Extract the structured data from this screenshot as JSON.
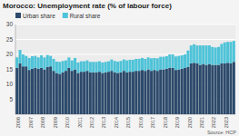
{
  "chart_data": {
    "type": "bar",
    "stacked": true,
    "title": "Morocco: Unemployment rate (% of labour force)",
    "source": "Source: HCP",
    "legend": "upper left",
    "grid": true,
    "ylim": [
      0,
      30
    ],
    "yticks": [
      5,
      10,
      15,
      20,
      25,
      30
    ],
    "categories": [
      "2006",
      null,
      null,
      null,
      "2007",
      null,
      null,
      null,
      "2008",
      null,
      null,
      null,
      "2009",
      null,
      null,
      null,
      "2010",
      null,
      null,
      null,
      "2011",
      null,
      null,
      null,
      "2012",
      null,
      null,
      null,
      "2013",
      null,
      null,
      null,
      "2014",
      null,
      null,
      null,
      "2015",
      null,
      null,
      null,
      "2016",
      null,
      null,
      null,
      "2017",
      null,
      null,
      null,
      "2018",
      null,
      null,
      null,
      "2019",
      null,
      null,
      null,
      "2020",
      null,
      null,
      null,
      "2021",
      null,
      null,
      null,
      "2022",
      null,
      null,
      null,
      "2023",
      null,
      null,
      null
    ],
    "series": [
      {
        "name": "Urban share",
        "color": "#2d4a6b",
        "values": [
          15.5,
          17.0,
          16.0,
          16.0,
          14.8,
          15.2,
          15.5,
          15.2,
          15.5,
          15.0,
          15.8,
          16.0,
          14.5,
          13.8,
          13.5,
          14.0,
          14.5,
          15.5,
          14.5,
          15.0,
          13.8,
          14.2,
          14.2,
          14.5,
          14.0,
          14.0,
          14.0,
          14.2,
          13.8,
          14.0,
          14.2,
          14.5,
          14.0,
          13.8,
          14.0,
          14.5,
          14.0,
          14.2,
          14.2,
          14.5,
          14.5,
          14.8,
          14.5,
          15.0,
          14.5,
          14.8,
          14.5,
          15.0,
          15.0,
          15.2,
          15.5,
          15.5,
          14.8,
          15.0,
          15.2,
          15.5,
          15.8,
          17.0,
          17.2,
          17.0,
          16.5,
          16.8,
          16.5,
          16.8,
          16.5,
          16.5,
          16.5,
          17.0,
          17.0,
          17.2,
          17.0,
          17.5
        ]
      },
      {
        "name": "Rural share",
        "color": "#4fc3d8",
        "values": [
          3.5,
          4.5,
          4.0,
          3.5,
          4.0,
          4.2,
          4.0,
          3.8,
          4.2,
          4.0,
          4.0,
          3.5,
          4.0,
          3.8,
          4.0,
          3.8,
          3.5,
          3.5,
          3.5,
          3.8,
          3.5,
          3.5,
          3.5,
          3.5,
          3.5,
          3.5,
          3.5,
          3.5,
          3.5,
          3.5,
          3.5,
          3.8,
          3.8,
          3.8,
          3.8,
          3.8,
          4.0,
          4.0,
          4.0,
          4.0,
          4.0,
          4.0,
          4.0,
          4.0,
          4.2,
          4.0,
          4.2,
          4.2,
          4.2,
          4.2,
          4.5,
          4.5,
          4.5,
          4.5,
          4.5,
          4.5,
          5.5,
          6.0,
          6.2,
          6.0,
          6.5,
          6.2,
          6.5,
          6.2,
          6.0,
          5.8,
          6.0,
          6.5,
          7.0,
          7.0,
          7.2,
          7.0
        ]
      }
    ]
  }
}
